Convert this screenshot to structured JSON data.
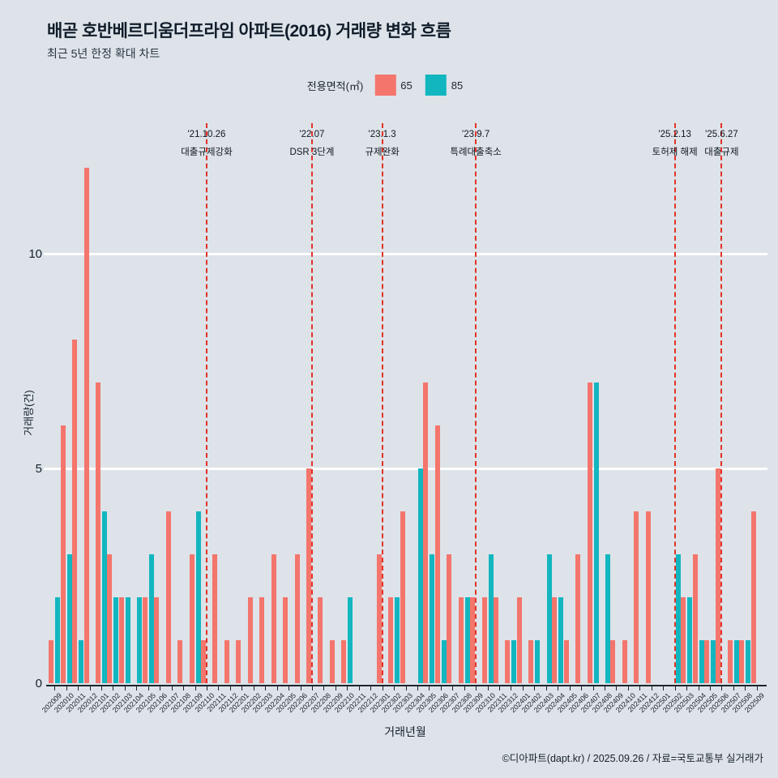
{
  "title": "배곧 호반베르디움더프라임 아파트(2016) 거래량 변화 흐름",
  "subtitle": "최근 5년 한정 확대 차트",
  "legend": {
    "label": "전용면적(㎡)",
    "items": [
      {
        "name": "65",
        "color": "#f4756c"
      },
      {
        "name": "85",
        "color": "#12b6bf"
      }
    ]
  },
  "y_axis": {
    "label": "거래량(건)",
    "ticks": [
      0,
      5,
      10
    ]
  },
  "x_axis": {
    "label": "거래년월"
  },
  "footer": "©디아파트(dapt.kr) / 2025.09.26 / 자료=국토교통부 실거래가",
  "annotations": [
    {
      "month": "202110",
      "date": "'21.10.26",
      "text": "대출규제강화"
    },
    {
      "month": "202207",
      "date": "'22.07",
      "text": "DSR 3단계"
    },
    {
      "month": "202301",
      "date": "'23.1.3",
      "text": "규제완화"
    },
    {
      "month": "202309",
      "date": "'23.9.7",
      "text": "특례대출축소"
    },
    {
      "month": "202502",
      "date": "'25.2.13",
      "text": "토허제 해제"
    },
    {
      "month": "202506",
      "date": "'25.6.27",
      "text": "대출규제"
    }
  ],
  "chart_data": {
    "type": "bar",
    "title": "배곧 호반베르디움더프라임 아파트(2016) 거래량 변화 흐름",
    "xlabel": "거래년월",
    "ylabel": "거래량(건)",
    "ylim": [
      0,
      13
    ],
    "grid": "horizontal-white",
    "legend_position": "top-center",
    "event_line_color": "#e23327",
    "categories": [
      "202009",
      "202010",
      "202011",
      "202012",
      "202101",
      "202102",
      "202103",
      "202104",
      "202105",
      "202106",
      "202107",
      "202108",
      "202109",
      "202110",
      "202111",
      "202112",
      "202201",
      "202202",
      "202203",
      "202204",
      "202205",
      "202206",
      "202207",
      "202208",
      "202209",
      "202210",
      "202211",
      "202212",
      "202301",
      "202302",
      "202303",
      "202304",
      "202305",
      "202306",
      "202307",
      "202308",
      "202309",
      "202310",
      "202311",
      "202312",
      "202401",
      "202402",
      "202403",
      "202404",
      "202405",
      "202406",
      "202407",
      "202408",
      "202409",
      "202410",
      "202411",
      "202412",
      "202501",
      "202502",
      "202503",
      "202504",
      "202505",
      "202506",
      "202507",
      "202508",
      "202509"
    ],
    "series": [
      {
        "name": "65",
        "color": "#f4756c",
        "values": [
          1,
          6,
          8,
          12,
          7,
          3,
          2,
          0,
          2,
          2,
          4,
          1,
          3,
          1,
          3,
          1,
          1,
          2,
          2,
          3,
          2,
          3,
          5,
          2,
          1,
          1,
          0,
          0,
          3,
          2,
          4,
          0,
          7,
          6,
          3,
          2,
          2,
          2,
          2,
          1,
          2,
          1,
          0,
          2,
          1,
          3,
          7,
          0,
          1,
          1,
          4,
          4,
          0,
          0,
          2,
          3,
          1,
          5,
          1,
          1,
          4
        ]
      },
      {
        "name": "85",
        "color": "#12b6bf",
        "values": [
          2,
          3,
          1,
          0,
          4,
          2,
          2,
          2,
          3,
          0,
          0,
          0,
          4,
          0,
          0,
          0,
          0,
          0,
          0,
          0,
          0,
          0,
          0,
          0,
          0,
          2,
          0,
          0,
          0,
          2,
          0,
          5,
          3,
          1,
          0,
          2,
          0,
          3,
          0,
          1,
          0,
          1,
          3,
          2,
          0,
          0,
          7,
          3,
          0,
          0,
          0,
          0,
          0,
          3,
          2,
          1,
          1,
          0,
          1,
          1,
          0
        ]
      }
    ]
  }
}
